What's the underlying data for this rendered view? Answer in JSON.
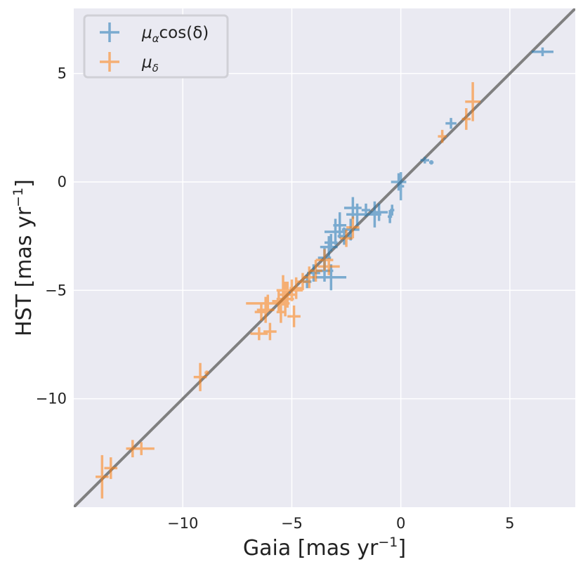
{
  "chart_data": {
    "type": "scatter",
    "title": "",
    "xlabel": "Gaia [mas yr",
    "xlabel_exp": "−1",
    "xlabel_tail": "]",
    "ylabel": "HST [mas yr",
    "ylabel_exp": "−1",
    "ylabel_tail": "]",
    "xlim": [
      -15,
      8
    ],
    "ylim": [
      -15,
      8
    ],
    "grid": true,
    "legend_position": "top-left",
    "x_ticks": [
      {
        "value": -10,
        "label": "−10"
      },
      {
        "value": -5,
        "label": "−5"
      },
      {
        "value": 0,
        "label": "0"
      },
      {
        "value": 5,
        "label": "5"
      }
    ],
    "y_ticks": [
      {
        "value": 5,
        "label": "5"
      },
      {
        "value": 0,
        "label": "0"
      },
      {
        "value": -5,
        "label": "−5"
      },
      {
        "value": -10,
        "label": "−10"
      }
    ],
    "colors": {
      "background": "#eaeaf2",
      "grid": "#ffffff",
      "identity_line": "#808080",
      "mu_alpha": "#1f77b4",
      "mu_delta": "#ff7f0e"
    },
    "reference_line": {
      "label": "y = x",
      "from": [
        -15,
        -15
      ],
      "to": [
        8,
        8
      ]
    },
    "series": [
      {
        "name": "mu_alpha cos(delta)",
        "legend_label": {
          "base": "μ",
          "sub": "α",
          "tail": "cos(δ)"
        },
        "color_key": "mu_alpha",
        "points": [
          {
            "x": 6.5,
            "y": 6.0,
            "xerr": 0.5,
            "yerr": 0.2
          },
          {
            "x": 2.3,
            "y": 2.7,
            "xerr": 0.25,
            "yerr": 0.25
          },
          {
            "x": 1.1,
            "y": 1.0,
            "xerr": 0.2,
            "yerr": 0.15
          },
          {
            "x": 1.4,
            "y": 0.9,
            "xerr": 0.1,
            "yerr": 0.1
          },
          {
            "x": -0.1,
            "y": 0.0,
            "xerr": 0.35,
            "yerr": 0.4
          },
          {
            "x": 0.0,
            "y": -0.2,
            "xerr": 0.15,
            "yerr": 0.65
          },
          {
            "x": -0.4,
            "y": -1.3,
            "xerr": 0.1,
            "yerr": 0.25
          },
          {
            "x": -0.5,
            "y": -1.6,
            "xerr": 0.1,
            "yerr": 0.3
          },
          {
            "x": -1.0,
            "y": -1.4,
            "xerr": 0.4,
            "yerr": 0.4
          },
          {
            "x": -1.2,
            "y": -1.5,
            "xerr": 0.3,
            "yerr": 0.6
          },
          {
            "x": -1.6,
            "y": -1.3,
            "xerr": 0.2,
            "yerr": 0.3
          },
          {
            "x": -2.0,
            "y": -1.5,
            "xerr": 0.5,
            "yerr": 0.5
          },
          {
            "x": -2.2,
            "y": -1.2,
            "xerr": 0.4,
            "yerr": 0.5
          },
          {
            "x": -2.3,
            "y": -2.2,
            "xerr": 0.4,
            "yerr": 0.5
          },
          {
            "x": -2.6,
            "y": -2.5,
            "xerr": 0.3,
            "yerr": 0.4
          },
          {
            "x": -2.8,
            "y": -2.0,
            "xerr": 0.3,
            "yerr": 0.6
          },
          {
            "x": -3.0,
            "y": -2.3,
            "xerr": 0.5,
            "yerr": 0.6
          },
          {
            "x": -3.2,
            "y": -2.8,
            "xerr": 0.3,
            "yerr": 0.4
          },
          {
            "x": -3.3,
            "y": -3.0,
            "xerr": 0.4,
            "yerr": 0.5
          },
          {
            "x": -3.5,
            "y": -3.5,
            "xerr": 0.3,
            "yerr": 0.5
          },
          {
            "x": -3.2,
            "y": -4.4,
            "xerr": 0.7,
            "yerr": 0.6
          },
          {
            "x": -3.5,
            "y": -4.1,
            "xerr": 0.4,
            "yerr": 0.5
          },
          {
            "x": -4.0,
            "y": -4.2,
            "xerr": 0.3,
            "yerr": 0.4
          },
          {
            "x": -4.3,
            "y": -4.6,
            "xerr": 0.2,
            "yerr": 0.3
          }
        ]
      },
      {
        "name": "mu_delta",
        "legend_label": {
          "base": "μ",
          "sub": "δ",
          "tail": ""
        },
        "color_key": "mu_delta",
        "points": [
          {
            "x": 3.3,
            "y": 3.7,
            "xerr": 0.35,
            "yerr": 0.9
          },
          {
            "x": 3.0,
            "y": 2.9,
            "xerr": 0.2,
            "yerr": 0.5
          },
          {
            "x": 1.9,
            "y": 2.1,
            "xerr": 0.2,
            "yerr": 0.3
          },
          {
            "x": -2.2,
            "y": -2.1,
            "xerr": 0.3,
            "yerr": 0.5
          },
          {
            "x": -2.5,
            "y": -2.6,
            "xerr": 0.3,
            "yerr": 0.4
          },
          {
            "x": -3.5,
            "y": -3.6,
            "xerr": 0.4,
            "yerr": 0.5
          },
          {
            "x": -3.3,
            "y": -3.9,
            "xerr": 0.5,
            "yerr": 0.4
          },
          {
            "x": -3.9,
            "y": -4.1,
            "xerr": 0.3,
            "yerr": 0.5
          },
          {
            "x": -4.2,
            "y": -4.4,
            "xerr": 0.3,
            "yerr": 0.5
          },
          {
            "x": -4.5,
            "y": -4.6,
            "xerr": 0.3,
            "yerr": 0.4
          },
          {
            "x": -4.8,
            "y": -4.9,
            "xerr": 0.3,
            "yerr": 0.5
          },
          {
            "x": -5.0,
            "y": -5.0,
            "xerr": 0.5,
            "yerr": 0.5
          },
          {
            "x": -5.2,
            "y": -5.2,
            "xerr": 0.4,
            "yerr": 0.6
          },
          {
            "x": -5.3,
            "y": -5.4,
            "xerr": 0.4,
            "yerr": 0.8
          },
          {
            "x": -5.4,
            "y": -5.0,
            "xerr": 0.3,
            "yerr": 0.7
          },
          {
            "x": -5.6,
            "y": -5.5,
            "xerr": 0.3,
            "yerr": 0.5
          },
          {
            "x": -4.9,
            "y": -6.2,
            "xerr": 0.3,
            "yerr": 0.5
          },
          {
            "x": -5.5,
            "y": -6.0,
            "xerr": 0.2,
            "yerr": 0.5
          },
          {
            "x": -6.1,
            "y": -5.6,
            "xerr": 1.0,
            "yerr": 0.4
          },
          {
            "x": -6.2,
            "y": -5.9,
            "xerr": 0.4,
            "yerr": 0.6
          },
          {
            "x": -6.4,
            "y": -6.0,
            "xerr": 0.3,
            "yerr": 0.4
          },
          {
            "x": -6.5,
            "y": -7.0,
            "xerr": 0.4,
            "yerr": 0.3
          },
          {
            "x": -6.0,
            "y": -6.9,
            "xerr": 0.3,
            "yerr": 0.4
          },
          {
            "x": -9.2,
            "y": -9.0,
            "xerr": 0.3,
            "yerr": 0.65
          },
          {
            "x": -8.9,
            "y": -8.8,
            "xerr": 0.1,
            "yerr": 0.1
          },
          {
            "x": -12.3,
            "y": -12.3,
            "xerr": 0.3,
            "yerr": 0.4
          },
          {
            "x": -11.9,
            "y": -12.3,
            "xerr": 0.6,
            "yerr": 0.3
          },
          {
            "x": -13.3,
            "y": -13.2,
            "xerr": 0.3,
            "yerr": 0.5
          },
          {
            "x": -13.7,
            "y": -13.6,
            "xerr": 0.3,
            "yerr": 1.0
          }
        ]
      }
    ]
  }
}
